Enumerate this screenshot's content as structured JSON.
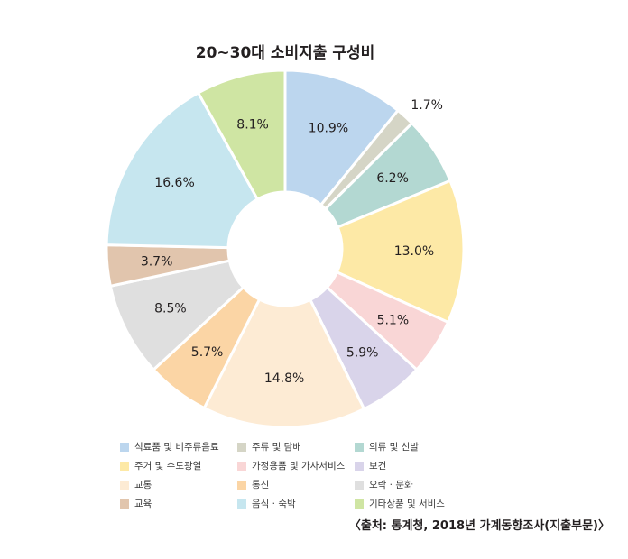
{
  "chart_data": {
    "type": "pie",
    "title": "20~30대 소비지출 구성비",
    "slices": [
      {
        "label": "식료품 및 비주류음료",
        "value": 10.9,
        "display": "10.9%",
        "color": "#bcd6ee"
      },
      {
        "label": "주류 및 담배",
        "value": 1.7,
        "display": "1.7%",
        "color": "#d5d5c6"
      },
      {
        "label": "의류 및 신발",
        "value": 6.2,
        "display": "6.2%",
        "color": "#b3d8d2"
      },
      {
        "label": "주거 및 수도광열",
        "value": 13.0,
        "display": "13.0%",
        "color": "#fde9a6"
      },
      {
        "label": "가정용품 및 가사서비스",
        "value": 5.1,
        "display": "5.1%",
        "color": "#f9d6d6"
      },
      {
        "label": "보건",
        "value": 5.9,
        "display": "5.9%",
        "color": "#d9d4ea"
      },
      {
        "label": "교통",
        "value": 14.8,
        "display": "14.8%",
        "color": "#fdebd4"
      },
      {
        "label": "통신",
        "value": 5.7,
        "display": "5.7%",
        "color": "#fbd5a5"
      },
      {
        "label": "오락 · 문화",
        "value": 8.5,
        "display": "8.5%",
        "color": "#dfdfdf"
      },
      {
        "label": "교육",
        "value": 3.7,
        "display": "3.7%",
        "color": "#e1c5ad"
      },
      {
        "label": "음식 · 숙박",
        "value": 16.6,
        "display": "16.6%",
        "color": "#c6e6ef"
      },
      {
        "label": "기타상품 및 서비스",
        "value": 8.1,
        "display": "8.1%",
        "color": "#cfe5a3"
      }
    ],
    "legend_placement": "bottom"
  },
  "source_text": "〈출처: 통계청, 2018년 가계동향조사(지출부문)〉"
}
